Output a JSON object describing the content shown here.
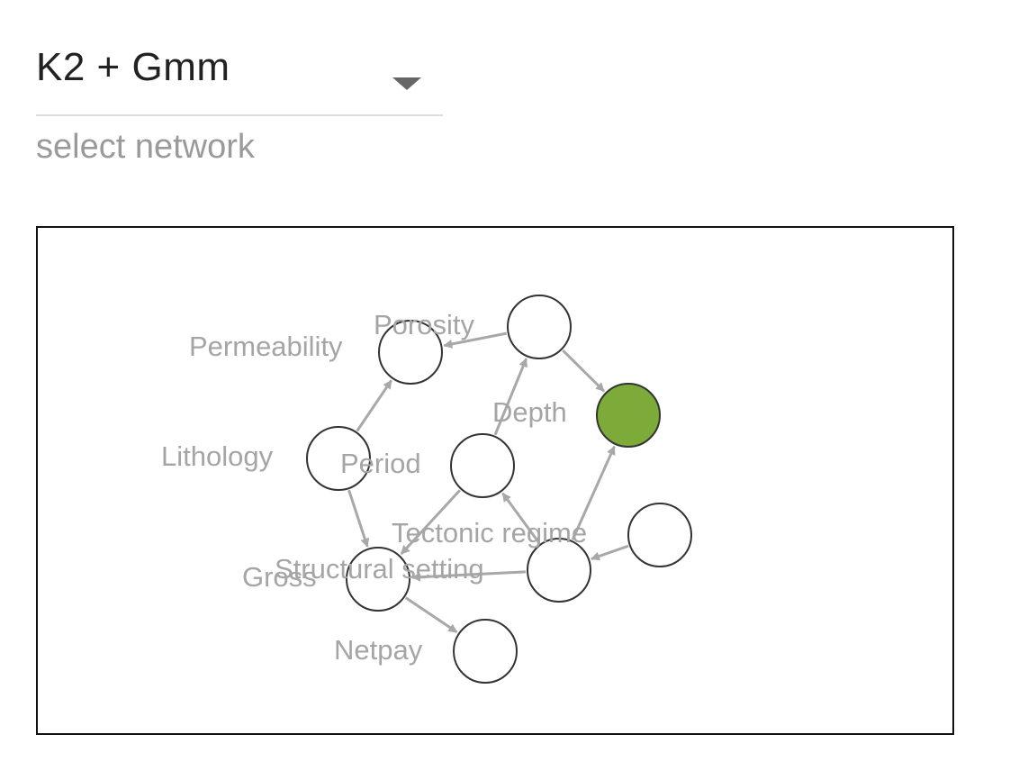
{
  "network_select": {
    "value": "K2 + Gmm",
    "helper_text": "select network",
    "icon": "dropdown-arrow-icon"
  },
  "graph": {
    "colors": {
      "node_fill": "#ffffff",
      "node_stroke": "#333333",
      "highlight_fill": "#7cab3a",
      "highlight_label": "#cfe0b2",
      "label": "#a5a5a5",
      "edge": "#a8a8a8"
    },
    "highlighted_node": "Depth",
    "nodes": [
      {
        "id": "Porosity",
        "label": "Porosity"
      },
      {
        "id": "Permeability",
        "label": "Permeability"
      },
      {
        "id": "Depth",
        "label": "Depth"
      },
      {
        "id": "Lithology",
        "label": "Lithology"
      },
      {
        "id": "Period",
        "label": "Period"
      },
      {
        "id": "Tectonic regime",
        "label": "Tectonic regime"
      },
      {
        "id": "Structural setting",
        "label": "Structural setting"
      },
      {
        "id": "Gross",
        "label": "Gross"
      },
      {
        "id": "Netpay",
        "label": "Netpay"
      }
    ],
    "edges": [
      {
        "from": "Porosity",
        "to": "Permeability"
      },
      {
        "from": "Porosity",
        "to": "Depth"
      },
      {
        "from": "Lithology",
        "to": "Permeability"
      },
      {
        "from": "Lithology",
        "to": "Gross"
      },
      {
        "from": "Period",
        "to": "Porosity"
      },
      {
        "from": "Period",
        "to": "Gross"
      },
      {
        "from": "Structural setting",
        "to": "Period"
      },
      {
        "from": "Structural setting",
        "to": "Depth"
      },
      {
        "from": "Structural setting",
        "to": "Gross"
      },
      {
        "from": "Tectonic regime",
        "to": "Structural setting"
      },
      {
        "from": "Gross",
        "to": "Netpay"
      }
    ]
  }
}
